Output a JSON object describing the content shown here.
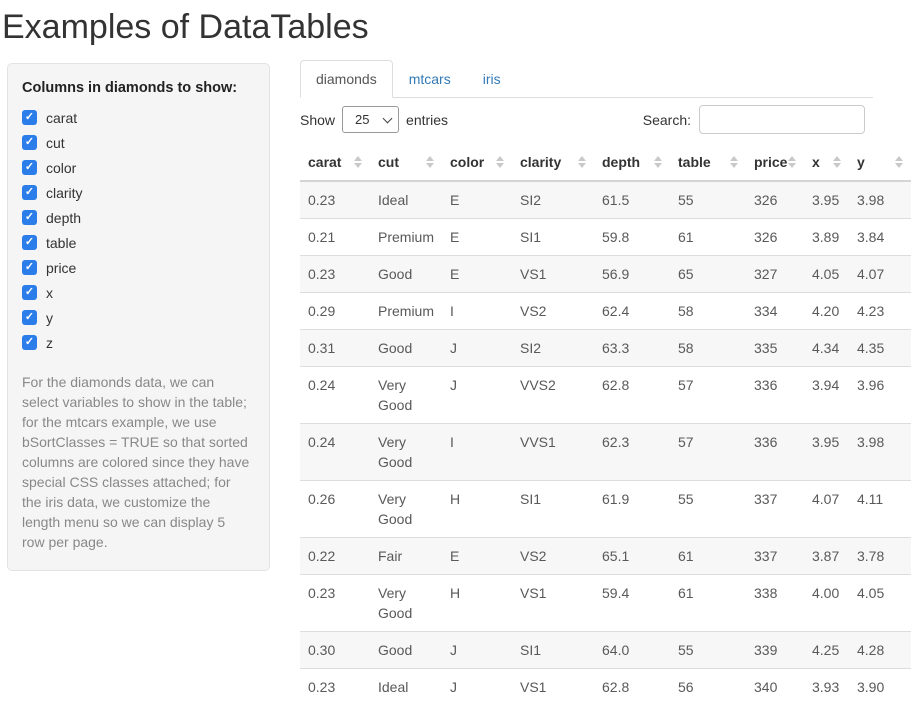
{
  "page": {
    "title": "Examples of DataTables"
  },
  "colors": {
    "checkbox_blue": "#2b7de9",
    "tab_link_blue": "#337ab7"
  },
  "sidebar": {
    "heading": "Columns in diamonds to show:",
    "checkboxes": [
      {
        "label": "carat",
        "checked": true
      },
      {
        "label": "cut",
        "checked": true
      },
      {
        "label": "color",
        "checked": true
      },
      {
        "label": "clarity",
        "checked": true
      },
      {
        "label": "depth",
        "checked": true
      },
      {
        "label": "table",
        "checked": true
      },
      {
        "label": "price",
        "checked": true
      },
      {
        "label": "x",
        "checked": true
      },
      {
        "label": "y",
        "checked": true
      },
      {
        "label": "z",
        "checked": true
      }
    ],
    "description": "For the diamonds data, we can select variables to show in the table; for the mtcars example, we use bSortClasses = TRUE so that sorted columns are colored since they have special CSS classes attached; for the iris data, we customize the length menu so we can display 5 row per page."
  },
  "tabs": [
    {
      "label": "diamonds",
      "active": true
    },
    {
      "label": "mtcars",
      "active": false
    },
    {
      "label": "iris",
      "active": false
    }
  ],
  "table_controls": {
    "show_label": "Show",
    "page_length": "25",
    "entries_label": "entries",
    "search_label": "Search:",
    "search_value": ""
  },
  "table": {
    "columns": [
      "carat",
      "cut",
      "color",
      "clarity",
      "depth",
      "table",
      "price",
      "x",
      "y"
    ],
    "rows": [
      [
        "0.23",
        "Ideal",
        "E",
        "SI2",
        "61.5",
        "55",
        "326",
        "3.95",
        "3.98"
      ],
      [
        "0.21",
        "Premium",
        "E",
        "SI1",
        "59.8",
        "61",
        "326",
        "3.89",
        "3.84"
      ],
      [
        "0.23",
        "Good",
        "E",
        "VS1",
        "56.9",
        "65",
        "327",
        "4.05",
        "4.07"
      ],
      [
        "0.29",
        "Premium",
        "I",
        "VS2",
        "62.4",
        "58",
        "334",
        "4.20",
        "4.23"
      ],
      [
        "0.31",
        "Good",
        "J",
        "SI2",
        "63.3",
        "58",
        "335",
        "4.34",
        "4.35"
      ],
      [
        "0.24",
        "Very Good",
        "J",
        "VVS2",
        "62.8",
        "57",
        "336",
        "3.94",
        "3.96"
      ],
      [
        "0.24",
        "Very Good",
        "I",
        "VVS1",
        "62.3",
        "57",
        "336",
        "3.95",
        "3.98"
      ],
      [
        "0.26",
        "Very Good",
        "H",
        "SI1",
        "61.9",
        "55",
        "337",
        "4.07",
        "4.11"
      ],
      [
        "0.22",
        "Fair",
        "E",
        "VS2",
        "65.1",
        "61",
        "337",
        "3.87",
        "3.78"
      ],
      [
        "0.23",
        "Very Good",
        "H",
        "VS1",
        "59.4",
        "61",
        "338",
        "4.00",
        "4.05"
      ],
      [
        "0.30",
        "Good",
        "J",
        "SI1",
        "64.0",
        "55",
        "339",
        "4.25",
        "4.28"
      ],
      [
        "0.23",
        "Ideal",
        "J",
        "VS1",
        "62.8",
        "56",
        "340",
        "3.93",
        "3.90"
      ]
    ]
  }
}
